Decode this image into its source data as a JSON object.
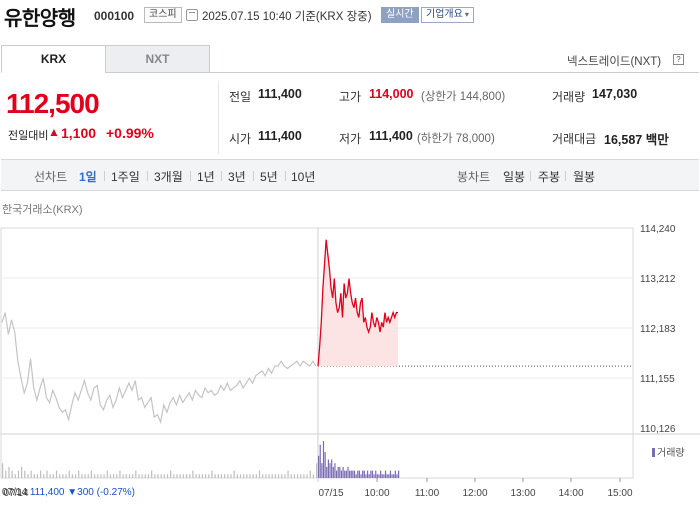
{
  "header": {
    "name": "유한양행",
    "code": "000100",
    "market": "코스피",
    "date": "2025.07.15 10:40",
    "basis": "기준(KRX 장중)",
    "realtime": "실시간",
    "company_btn": "기업개요",
    "caret": "▾"
  },
  "tabs": {
    "krx": "KRX",
    "nxt": "NXT"
  },
  "nextrade": {
    "label": "넥스트레이드(NXT)",
    "icon": "?"
  },
  "price": {
    "current": "112,500",
    "change_label": "전일대비",
    "arrow": "▲",
    "change": "1,100",
    "change_pct": "+0.99%"
  },
  "quote": {
    "prev_label": "전일",
    "prev": "111,400",
    "high_label": "고가",
    "high": "114,000",
    "upper_limit": "(상한가 144,800)",
    "volume_label": "거래량",
    "volume": "147,030",
    "open_label": "시가",
    "open": "111,400",
    "low_label": "저가",
    "low": "111,400",
    "lower_limit": "(하한가 78,000)",
    "amount_label": "거래대금",
    "amount": "16,587 백만"
  },
  "periods": {
    "line_label": "선차트",
    "line": [
      "1일",
      "1주일",
      "3개월",
      "1년",
      "3년",
      "5년",
      "10년"
    ],
    "candle_label": "봉차트",
    "candle": [
      "일봉",
      "주봉",
      "월봉"
    ]
  },
  "chart": {
    "source": "한국거래소(KRX)",
    "volume_legend": "거래량",
    "prev_day_info": {
      "date": "07/14",
      "price": "111,400",
      "change": "▼300 (-0.27%)"
    },
    "colors": {
      "up": "#e0001b",
      "up_fill": "#fde4e4",
      "prev": "#c4c4c4",
      "volume": "#7b6bb3",
      "prev_volume": "#bdbdbd"
    }
  },
  "chart_data": {
    "type": "line",
    "title": "",
    "ylim": [
      110126,
      114240
    ],
    "y_ticks": [
      "114,240",
      "113,212",
      "112,183",
      "111,155",
      "110,126"
    ],
    "x_ticks": [
      "07/14",
      "07/15",
      "10:00",
      "11:00",
      "12:00",
      "13:00",
      "14:00",
      "15:00"
    ],
    "reference_price": 111400,
    "series": [
      {
        "name": "07/14",
        "values": [
          112300,
          112500,
          112050,
          112350,
          112100,
          111500,
          111150,
          110850,
          111050,
          111550,
          110950,
          110700,
          110950,
          111150,
          110750,
          110650,
          110900,
          110750,
          110550,
          110450,
          110500,
          110300,
          110600,
          110850,
          110700,
          110900,
          111100,
          110850,
          110700,
          110950,
          111000,
          110600,
          110500,
          110700,
          110800,
          110550,
          110700,
          110950,
          110750,
          110900,
          111050,
          110900,
          111100,
          110700,
          110750,
          110550,
          110650,
          110750,
          110350,
          110400,
          110250,
          110600,
          110450,
          110650,
          110750,
          110600,
          110800,
          110650,
          110750,
          110850,
          110700,
          110900,
          110800,
          110750,
          110950,
          110850,
          110900,
          110800,
          110850,
          111000,
          110900,
          111050,
          110900,
          110950,
          111000,
          111100,
          110950,
          111050,
          111150,
          111050,
          111200,
          111250,
          111300,
          111200,
          111350,
          111250,
          111400,
          111400,
          111500,
          111400,
          111350,
          111400,
          111450,
          111500,
          111400,
          111500,
          111450,
          111400,
          111500,
          111400
        ]
      },
      {
        "name": "07/15",
        "values": [
          111400,
          111800,
          112300,
          113000,
          113500,
          114000,
          113700,
          113400,
          113000,
          112800,
          113200,
          112700,
          112500,
          112600,
          112900,
          112400,
          113100,
          112800,
          112900,
          113200,
          112900,
          112700,
          112600,
          112800,
          112500,
          112400,
          112700,
          112800,
          112300,
          112400,
          112200,
          112100,
          112200,
          112500,
          112300,
          112200,
          112400,
          112300,
          112100,
          112300,
          112200,
          112500,
          112300,
          112400,
          112300,
          112400,
          112500,
          112400,
          112500,
          112500
        ]
      }
    ],
    "volume_prev": [
      4,
      2,
      3,
      2,
      1,
      2,
      3,
      2,
      1,
      2,
      1,
      1,
      2,
      1,
      2,
      1,
      1,
      2,
      1,
      1,
      1,
      2,
      1,
      1,
      2,
      1,
      1,
      1,
      2,
      1,
      1,
      1,
      1,
      2,
      1,
      1,
      1,
      2,
      1,
      1,
      1,
      1,
      2,
      1,
      1,
      1,
      1,
      2,
      1,
      1,
      1,
      1,
      1,
      2,
      1,
      1,
      1,
      1,
      1,
      1,
      2,
      1,
      1,
      1,
      1,
      1,
      2,
      1,
      1,
      1,
      1,
      1,
      1,
      2,
      1,
      1,
      1,
      1,
      1,
      1,
      1,
      2,
      1,
      1,
      1,
      1,
      1,
      1,
      1,
      1,
      2,
      1,
      1,
      1,
      1,
      1,
      1,
      2,
      1,
      4
    ],
    "volume_today": [
      6,
      9,
      4,
      10,
      7,
      3,
      5,
      4,
      5,
      3,
      4,
      2,
      3,
      3,
      2,
      3,
      2,
      2,
      3,
      2,
      2,
      2,
      2,
      1,
      2,
      2,
      1,
      2,
      2,
      1,
      2,
      1,
      2,
      2,
      1,
      2,
      1,
      1,
      2,
      1,
      1,
      2,
      1,
      1,
      2,
      1,
      1,
      2,
      1,
      2
    ]
  }
}
